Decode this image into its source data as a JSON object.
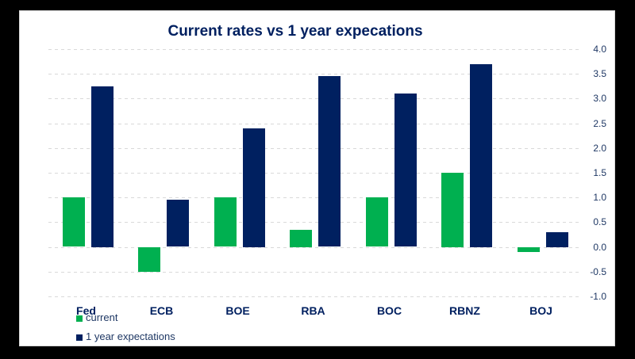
{
  "window": {
    "background_color": "#000000",
    "panel_color": "#ffffff"
  },
  "title": "Current rates vs 1 year expecations",
  "colors": {
    "current_series": "#00b050",
    "expectations_series": "#002060",
    "title_text": "#002060",
    "category_text": "#002060",
    "axis_text": "#1f3864",
    "gridline": "#d9d9d9"
  },
  "legend": {
    "items": [
      {
        "label": "current",
        "color": "#00b050"
      },
      {
        "label": "1 year expectations",
        "color": "#002060"
      }
    ]
  },
  "chart_data": {
    "type": "bar",
    "title": "Current rates vs 1 year expecations",
    "categories": [
      "Fed",
      "ECB",
      "BOE",
      "RBA",
      "BOC",
      "RBNZ",
      "BOJ"
    ],
    "series": [
      {
        "name": "current",
        "color": "#00b050",
        "values": [
          1.0,
          -0.5,
          1.0,
          0.35,
          1.0,
          1.5,
          -0.1
        ]
      },
      {
        "name": "1 year expectations",
        "color": "#002060",
        "values": [
          3.25,
          0.95,
          2.4,
          3.45,
          3.1,
          3.7,
          0.3
        ]
      }
    ],
    "xlabel": "",
    "ylabel": "",
    "y_axis": {
      "min": -1.0,
      "max": 4.0,
      "step": 0.5,
      "side": "right",
      "tick_labels": [
        "4.0",
        "3.5",
        "3.0",
        "2.5",
        "2.0",
        "1.5",
        "1.0",
        "0.5",
        "0.0",
        "-0.5",
        "-1.0"
      ]
    },
    "grid": "horizontal-dashed",
    "legend_position": "bottom-left"
  }
}
